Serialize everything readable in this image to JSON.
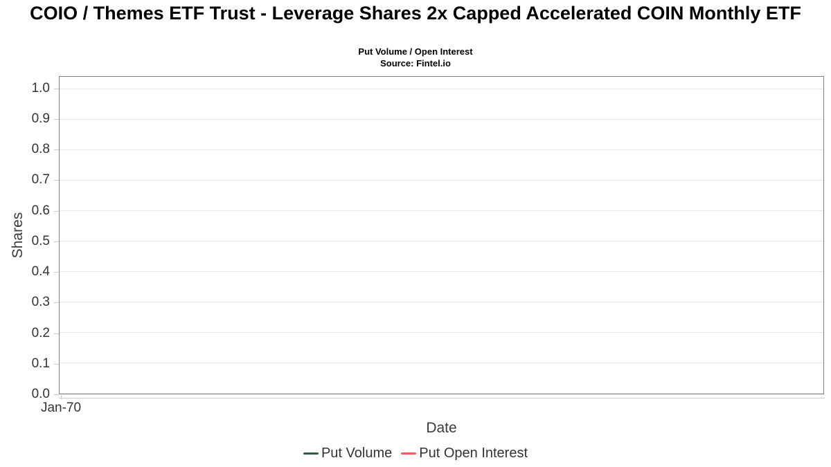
{
  "chart_data": {
    "type": "line",
    "title": "COIO / Themes ETF Trust - Leverage Shares 2x Capped Accelerated COIN Monthly ETF",
    "subtitle": "Put Volume / Open Interest",
    "source_note": "Source: Fintel.io",
    "xlabel": "Date",
    "ylabel": "Shares",
    "x_tick_labels": [
      "Jan-70"
    ],
    "y_ticks": [
      {
        "value": 0.0,
        "label": "0.0"
      },
      {
        "value": 0.1,
        "label": "0.1"
      },
      {
        "value": 0.2,
        "label": "0.2"
      },
      {
        "value": 0.3,
        "label": "0.3"
      },
      {
        "value": 0.4,
        "label": "0.4"
      },
      {
        "value": 0.5,
        "label": "0.5"
      },
      {
        "value": 0.6,
        "label": "0.6"
      },
      {
        "value": 0.7,
        "label": "0.7"
      },
      {
        "value": 0.8,
        "label": "0.8"
      },
      {
        "value": 0.9,
        "label": "0.9"
      },
      {
        "value": 1.0,
        "label": "1.0"
      }
    ],
    "ylim": [
      0,
      1.04
    ],
    "grid": true,
    "legend_position": "bottom-center",
    "series": [
      {
        "name": "Put Volume",
        "color": "#2d5c3e",
        "x": [],
        "values": []
      },
      {
        "name": "Put Open Interest",
        "color": "#fa5a5a",
        "x": [],
        "values": []
      }
    ],
    "colors": {
      "grid": "#e6e6e6",
      "plot_border": "#808080",
      "axis_line": "#cccccc",
      "tick": "#cccccc",
      "tick_label": "#333333",
      "title": "#000000"
    }
  }
}
